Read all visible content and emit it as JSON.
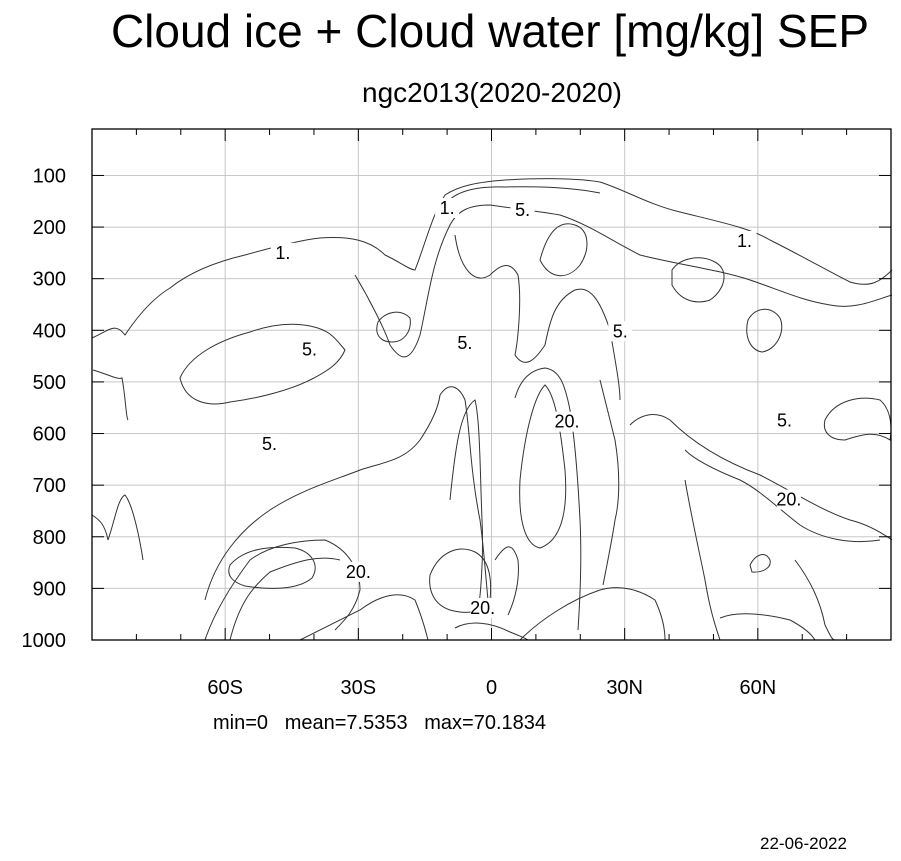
{
  "header": {
    "title": "Cloud ice + Cloud water [mg/kg] SEP",
    "subtitle": "ngc2013(2020-2020)"
  },
  "footer": {
    "stats": "min=0   mean=7.5353   max=70.1834",
    "date": "22-06-2022"
  },
  "chart_data": {
    "type": "contour",
    "title": "Cloud ice + Cloud water [mg/kg] SEP",
    "subtitle": "ngc2013(2020-2020)",
    "xlabel": "",
    "ylabel": "",
    "x_range": [
      -90,
      90
    ],
    "y_range": [
      1000,
      10
    ],
    "x_ticks": [
      {
        "value": -60,
        "label": "60S"
      },
      {
        "value": -30,
        "label": "30S"
      },
      {
        "value": 0,
        "label": "0"
      },
      {
        "value": 30,
        "label": "30N"
      },
      {
        "value": 60,
        "label": "60N"
      }
    ],
    "y_ticks": [
      {
        "value": 100,
        "label": "100"
      },
      {
        "value": 200,
        "label": "200"
      },
      {
        "value": 300,
        "label": "300"
      },
      {
        "value": 400,
        "label": "400"
      },
      {
        "value": 500,
        "label": "500"
      },
      {
        "value": 600,
        "label": "600"
      },
      {
        "value": 700,
        "label": "700"
      },
      {
        "value": 800,
        "label": "800"
      },
      {
        "value": 900,
        "label": "900"
      },
      {
        "value": 1000,
        "label": "1000"
      }
    ],
    "grid": true,
    "contour_levels": [
      1,
      5,
      20
    ],
    "contour_labels": [
      {
        "text": "1.",
        "x": -47,
        "y": 250
      },
      {
        "text": "1.",
        "x": -10,
        "y": 163
      },
      {
        "text": "5.",
        "x": 7,
        "y": 167
      },
      {
        "text": "1.",
        "x": 57,
        "y": 227
      },
      {
        "text": "5.",
        "x": -41,
        "y": 437
      },
      {
        "text": "5.",
        "x": -6,
        "y": 425
      },
      {
        "text": "5.",
        "x": 29,
        "y": 402
      },
      {
        "text": "20.",
        "x": 17,
        "y": 577
      },
      {
        "text": "5.",
        "x": 66,
        "y": 575
      },
      {
        "text": "20.",
        "x": 67,
        "y": 728
      },
      {
        "text": "5.",
        "x": -50,
        "y": 620
      },
      {
        "text": "20.",
        "x": -30,
        "y": 868
      },
      {
        "text": "20.",
        "x": -2,
        "y": 938
      }
    ],
    "stats": {
      "min": 0,
      "mean": 7.5353,
      "max": 70.1834
    }
  }
}
